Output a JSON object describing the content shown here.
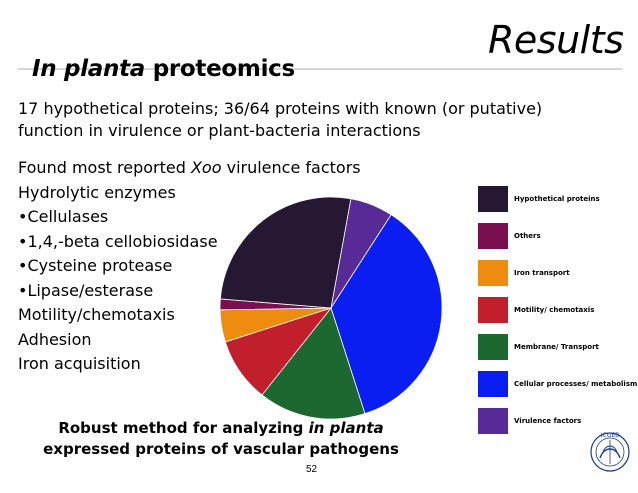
{
  "slide": {
    "title": "Results",
    "subtitle_italic": "In planta",
    "subtitle_rest": " proteomics",
    "intro_line1": "17 hypothetical proteins; 36/64 proteins with known (or putative)",
    "intro_line2": "function in virulence or plant-bacteria interactions",
    "bullets": [
      {
        "pre": "Found most reported ",
        "ital": "Xoo",
        "post": " virulence factors"
      },
      {
        "pre": "Hydrolytic enzymes",
        "ital": "",
        "post": ""
      },
      {
        "pre": "•Cellulases",
        "ital": "",
        "post": ""
      },
      {
        "pre": "•1,4,-beta cellobiosidase",
        "ital": "",
        "post": ""
      },
      {
        "pre": "•Cysteine protease",
        "ital": "",
        "post": ""
      },
      {
        "pre": "•Lipase/esterase",
        "ital": "",
        "post": ""
      },
      {
        "pre": "Motility/chemotaxis",
        "ital": "",
        "post": ""
      },
      {
        "pre": "Adhesion",
        "ital": "",
        "post": ""
      },
      {
        "pre": "Iron acquisition",
        "ital": "",
        "post": ""
      }
    ],
    "robust_line1_pre": "Robust method for analyzing ",
    "robust_line1_ital": "in planta",
    "robust_line2": "expressed proteins of vascular pathogens",
    "page_number": "52",
    "logo_text": "ICGEB"
  },
  "chart_data": {
    "type": "pie",
    "title": "",
    "categories": [
      "Hypothetical proteins",
      "Others",
      "Iron transport",
      "Motility/ chemotaxis",
      "Membrane/ Transport",
      "Cellular processes/ metabolism",
      "Virulence factors"
    ],
    "values": [
      17,
      1,
      3,
      6,
      10,
      23,
      4
    ],
    "colors": [
      "#261832",
      "#7a0f50",
      "#ee8c10",
      "#c01f2b",
      "#1d6830",
      "#0a1ef2",
      "#582a98"
    ],
    "legend": "right"
  }
}
